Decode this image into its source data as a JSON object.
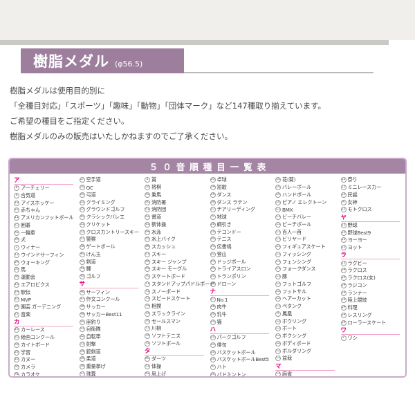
{
  "header": {
    "title": "樹脂メダル",
    "diameter": "(φ56.5)"
  },
  "intro_lines": [
    "樹脂メダルは使用目的別に",
    "「全種目対応」「スポーツ」「趣味」「動物」「団体マーク」など147種取り揃えています。",
    "ご希望の種目をご指定ください。",
    "樹脂メダルのみの販売はいたしかねますのでご了承ください。"
  ],
  "colors": {
    "header_bar": "#9d7f9d",
    "table_title_bar": "#a486a4",
    "table_border": "#c9abc9",
    "section_kana": "#e5007f",
    "section_underline": "#f0a0c8"
  },
  "table": {
    "title": "５０音順種目一覧表",
    "columns": [
      {
        "rows": [
          {
            "t": "s",
            "label": "ア"
          },
          {
            "t": "i",
            "n": 8,
            "label": "アーチェリー"
          },
          {
            "t": "i",
            "n": 9,
            "label": "合気道"
          },
          {
            "t": "i",
            "n": 19,
            "label": "アイスホッケー"
          },
          {
            "t": "i",
            "n": 22,
            "label": "赤ちゃん"
          },
          {
            "t": "i",
            "n": 11,
            "label": "アメリカンフットボール"
          },
          {
            "t": "i",
            "n": 23,
            "label": "囲碁"
          },
          {
            "t": "i",
            "n": 32,
            "label": "一輪車"
          },
          {
            "t": "i",
            "n": 34,
            "label": "犬"
          },
          {
            "t": "i",
            "n": 1,
            "label": "ウィナー"
          },
          {
            "t": "i",
            "n": 12,
            "label": "ウインドサーフィン"
          },
          {
            "t": "i",
            "n": 24,
            "label": "ウォーキング"
          },
          {
            "t": "i",
            "n": 35,
            "label": "馬"
          },
          {
            "t": "i",
            "n": 36,
            "label": "運動会"
          },
          {
            "t": "i",
            "n": 13,
            "label": "エアロビクス"
          },
          {
            "t": "i",
            "n": 14,
            "label": "駅伝"
          },
          {
            "t": "i",
            "n": 16,
            "label": "MVP"
          },
          {
            "t": "i",
            "n": 26,
            "label": "園芸 ガーデニング"
          },
          {
            "t": "i",
            "n": 27,
            "label": "音楽"
          },
          {
            "t": "s",
            "label": "カ"
          },
          {
            "t": "i",
            "n": 15,
            "label": "カーレース"
          },
          {
            "t": "i",
            "n": 28,
            "label": "絵画コンクール"
          },
          {
            "t": "i",
            "n": 44,
            "label": "カイトボード"
          },
          {
            "t": "i",
            "n": 29,
            "label": "学習"
          },
          {
            "t": "i",
            "n": 18,
            "label": "カヌー"
          },
          {
            "t": "i",
            "n": 38,
            "label": "カメラ"
          },
          {
            "t": "i",
            "n": 41,
            "label": "カラオケ"
          }
        ]
      },
      {
        "rows": [
          {
            "t": "i",
            "n": 17,
            "label": "空手道"
          },
          {
            "t": "i",
            "n": 10,
            "label": "QC"
          },
          {
            "t": "i",
            "n": 20,
            "label": "弓道"
          },
          {
            "t": "i",
            "n": 21,
            "label": "クライミング"
          },
          {
            "t": "i",
            "n": 25,
            "label": "グラウンドゴルフ"
          },
          {
            "t": "i",
            "n": 30,
            "label": "クラシックバレエ"
          },
          {
            "t": "i",
            "n": 31,
            "label": "クリケット"
          },
          {
            "t": "i",
            "n": 33,
            "label": "クロスカントリースキー"
          },
          {
            "t": "i",
            "n": 37,
            "label": "警察"
          },
          {
            "t": "i",
            "n": 39,
            "label": "ゲートボール"
          },
          {
            "t": "i",
            "n": 40,
            "label": "けん玉"
          },
          {
            "t": "i",
            "n": 42,
            "label": "剣道"
          },
          {
            "t": "i",
            "n": 43,
            "label": "鯉"
          },
          {
            "t": "i",
            "n": 45,
            "label": "ゴルフ"
          },
          {
            "t": "s",
            "label": "サ"
          },
          {
            "t": "i",
            "n": 46,
            "label": "サーフィン"
          },
          {
            "t": "i",
            "n": 47,
            "label": "作文コンクール"
          },
          {
            "t": "i",
            "n": 48,
            "label": "サッカー"
          },
          {
            "t": "i",
            "n": 49,
            "label": "サッカーBest11"
          },
          {
            "t": "i",
            "n": 50,
            "label": "座釣り"
          },
          {
            "t": "i",
            "n": 51,
            "label": "自衛隊"
          },
          {
            "t": "i",
            "n": 52,
            "label": "自転車"
          },
          {
            "t": "i",
            "n": 53,
            "label": "射撃"
          },
          {
            "t": "i",
            "n": 54,
            "label": "銃剣道"
          },
          {
            "t": "i",
            "n": 55,
            "label": "柔道"
          },
          {
            "t": "i",
            "n": 56,
            "label": "重量挙げ"
          },
          {
            "t": "i",
            "n": 57,
            "label": "珠算"
          }
        ]
      },
      {
        "rows": [
          {
            "t": "i",
            "n": 2,
            "label": "賞"
          },
          {
            "t": "i",
            "n": 58,
            "label": "将棋"
          },
          {
            "t": "i",
            "n": 59,
            "label": "乗馬"
          },
          {
            "t": "i",
            "n": 60,
            "label": "消防署"
          },
          {
            "t": "i",
            "n": 61,
            "label": "消防団"
          },
          {
            "t": "i",
            "n": 62,
            "label": "書道"
          },
          {
            "t": "i",
            "n": 63,
            "label": "新体操"
          },
          {
            "t": "i",
            "n": 64,
            "label": "水泳"
          },
          {
            "t": "i",
            "n": 65,
            "label": "水上バイク"
          },
          {
            "t": "i",
            "n": 66,
            "label": "スカッシュ"
          },
          {
            "t": "i",
            "n": 67,
            "label": "スキー"
          },
          {
            "t": "i",
            "n": 68,
            "label": "スキー ジャンプ"
          },
          {
            "t": "i",
            "n": 69,
            "label": "スキー モーグル"
          },
          {
            "t": "i",
            "n": 70,
            "label": "スケートボード"
          },
          {
            "t": "i",
            "n": 71,
            "label": "スタンドアップパドルボード"
          },
          {
            "t": "i",
            "n": 72,
            "label": "スノーボード"
          },
          {
            "t": "i",
            "n": 73,
            "label": "スピードスケート"
          },
          {
            "t": "i",
            "n": 74,
            "label": "相撲"
          },
          {
            "t": "i",
            "n": 75,
            "label": "スラックライン"
          },
          {
            "t": "i",
            "n": 76,
            "label": "セールスマン"
          },
          {
            "t": "i",
            "n": 77,
            "label": "川柳"
          },
          {
            "t": "i",
            "n": 78,
            "label": "ソフトテニス"
          },
          {
            "t": "i",
            "n": 79,
            "label": "ソフトボール"
          },
          {
            "t": "s",
            "label": "タ"
          },
          {
            "t": "i",
            "n": 80,
            "label": "ダーツ"
          },
          {
            "t": "i",
            "n": 81,
            "label": "体操"
          },
          {
            "t": "i",
            "n": 82,
            "label": "凧上げ"
          }
        ]
      },
      {
        "rows": [
          {
            "t": "i",
            "n": 83,
            "label": "卓球"
          },
          {
            "t": "i",
            "n": 84,
            "label": "短歌"
          },
          {
            "t": "i",
            "n": 85,
            "label": "ダンス"
          },
          {
            "t": "i",
            "n": 86,
            "label": "ダンス ラテン"
          },
          {
            "t": "i",
            "n": 87,
            "label": "チアリーディング"
          },
          {
            "t": "i",
            "n": 3,
            "label": "地球"
          },
          {
            "t": "i",
            "n": 88,
            "label": "綱引き"
          },
          {
            "t": "i",
            "n": 89,
            "label": "テコンドー"
          },
          {
            "t": "i",
            "n": 90,
            "label": "テニス"
          },
          {
            "t": "i",
            "n": 91,
            "label": "伝書鳩"
          },
          {
            "t": "i",
            "n": 92,
            "label": "登山"
          },
          {
            "t": "i",
            "n": 93,
            "label": "ドッジボール"
          },
          {
            "t": "i",
            "n": 94,
            "label": "トライアスロン"
          },
          {
            "t": "i",
            "n": 95,
            "label": "トランポリン"
          },
          {
            "t": "i",
            "n": 96,
            "label": "ドローン"
          },
          {
            "t": "s",
            "label": "ナ"
          },
          {
            "t": "i",
            "n": 97,
            "label": "No.1"
          },
          {
            "t": "i",
            "n": 98,
            "label": "肉牛"
          },
          {
            "t": "i",
            "n": 99,
            "label": "乳牛"
          },
          {
            "t": "i",
            "n": 100,
            "label": "猫"
          },
          {
            "t": "s",
            "label": "ハ"
          },
          {
            "t": "i",
            "n": 101,
            "label": "パークゴルフ"
          },
          {
            "t": "i",
            "n": 102,
            "label": "俳句"
          },
          {
            "t": "i",
            "n": 103,
            "label": "バスケットボール"
          },
          {
            "t": "i",
            "n": 104,
            "label": "バスケットボールBest5"
          },
          {
            "t": "i",
            "n": 6,
            "label": "ハト"
          },
          {
            "t": "i",
            "n": 105,
            "label": "バドミントン"
          }
        ]
      },
      {
        "rows": [
          {
            "t": "i",
            "n": 106,
            "label": "花(菊)"
          },
          {
            "t": "i",
            "n": 107,
            "label": "バレーボール"
          },
          {
            "t": "i",
            "n": 108,
            "label": "ハンドボール"
          },
          {
            "t": "i",
            "n": 109,
            "label": "ピアノ エレクトーン"
          },
          {
            "t": "i",
            "n": 110,
            "label": "BMX"
          },
          {
            "t": "i",
            "n": 111,
            "label": "ビーチバレー"
          },
          {
            "t": "i",
            "n": 112,
            "label": "ビーチボール"
          },
          {
            "t": "i",
            "n": 113,
            "label": "百人一首"
          },
          {
            "t": "i",
            "n": 114,
            "label": "ビリヤード"
          },
          {
            "t": "i",
            "n": 115,
            "label": "フィギュアスケート"
          },
          {
            "t": "i",
            "n": 116,
            "label": "フィッシング"
          },
          {
            "t": "i",
            "n": 117,
            "label": "フェンシング"
          },
          {
            "t": "i",
            "n": 118,
            "label": "フォークダンス"
          },
          {
            "t": "i",
            "n": 119,
            "label": "豚"
          },
          {
            "t": "i",
            "n": 120,
            "label": "フットゴルフ"
          },
          {
            "t": "i",
            "n": 121,
            "label": "フットサル"
          },
          {
            "t": "i",
            "n": 122,
            "label": "ヘアーカット"
          },
          {
            "t": "i",
            "n": 123,
            "label": "ペタンク"
          },
          {
            "t": "i",
            "n": 5,
            "label": "鳳凰"
          },
          {
            "t": "i",
            "n": 124,
            "label": "ボウリング"
          },
          {
            "t": "i",
            "n": 125,
            "label": "ボート"
          },
          {
            "t": "i",
            "n": 126,
            "label": "ボクシング"
          },
          {
            "t": "i",
            "n": 127,
            "label": "ボディボード"
          },
          {
            "t": "i",
            "n": 128,
            "label": "ボルダリング"
          },
          {
            "t": "i",
            "n": 129,
            "label": "盆栽"
          },
          {
            "t": "s",
            "label": "マ"
          },
          {
            "t": "i",
            "n": 130,
            "label": "麻雀"
          }
        ]
      },
      {
        "rows": [
          {
            "t": "i",
            "n": 131,
            "label": "祭り"
          },
          {
            "t": "i",
            "n": 132,
            "label": "ミニレースカー"
          },
          {
            "t": "i",
            "n": 133,
            "label": "民謡"
          },
          {
            "t": "i",
            "n": 4,
            "label": "女神"
          },
          {
            "t": "i",
            "n": 134,
            "label": "モトクロス"
          },
          {
            "t": "s",
            "label": "ヤ"
          },
          {
            "t": "i",
            "n": 135,
            "label": "野球"
          },
          {
            "t": "i",
            "n": 136,
            "label": "野球Best9"
          },
          {
            "t": "i",
            "n": 137,
            "label": "ヨーヨー"
          },
          {
            "t": "i",
            "n": 138,
            "label": "ヨット"
          },
          {
            "t": "s",
            "label": "ラ"
          },
          {
            "t": "i",
            "n": 139,
            "label": "ラグビー"
          },
          {
            "t": "i",
            "n": 140,
            "label": "ラクロス"
          },
          {
            "t": "i",
            "n": 141,
            "label": "ラクロス(女)"
          },
          {
            "t": "i",
            "n": 142,
            "label": "ラジコン"
          },
          {
            "t": "i",
            "n": 143,
            "label": "ランナー"
          },
          {
            "t": "i",
            "n": 144,
            "label": "陸上競技"
          },
          {
            "t": "i",
            "n": 145,
            "label": "料理"
          },
          {
            "t": "i",
            "n": 146,
            "label": "レスリング"
          },
          {
            "t": "i",
            "n": 147,
            "label": "ローラースケート"
          },
          {
            "t": "s",
            "label": "ワ"
          },
          {
            "t": "i",
            "n": 7,
            "label": "ワシ"
          }
        ]
      }
    ]
  }
}
